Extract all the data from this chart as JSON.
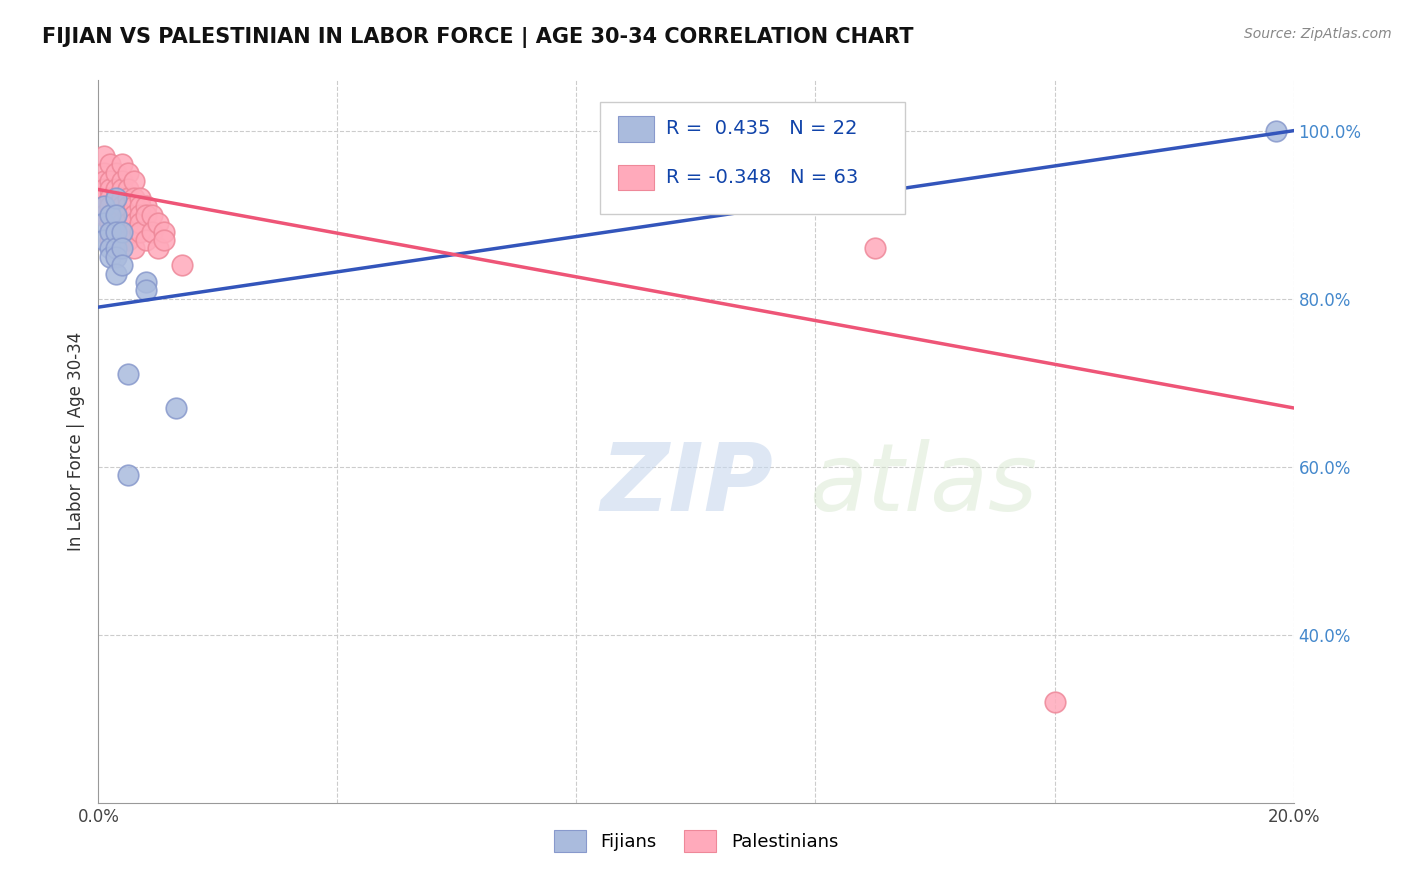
{
  "title": "FIJIAN VS PALESTINIAN IN LABOR FORCE | AGE 30-34 CORRELATION CHART",
  "source_text": "Source: ZipAtlas.com",
  "ylabel": "In Labor Force | Age 30-34",
  "xlim": [
    0.0,
    0.2
  ],
  "ylim": [
    0.2,
    1.06
  ],
  "xticks": [
    0.0,
    0.04,
    0.08,
    0.12,
    0.16,
    0.2
  ],
  "xticklabels": [
    "0.0%",
    "",
    "",
    "",
    "",
    "20.0%"
  ],
  "yticks": [
    0.4,
    0.6,
    0.8,
    1.0
  ],
  "yticklabels": [
    "40.0%",
    "60.0%",
    "80.0%",
    "100.0%"
  ],
  "grid_color": "#cccccc",
  "background_color": "#ffffff",
  "blue_color": "#aabbdd",
  "pink_color": "#ffaabb",
  "blue_edge_color": "#8899cc",
  "pink_edge_color": "#ee8899",
  "blue_line_color": "#3355bb",
  "pink_line_color": "#ee5577",
  "tick_color": "#4488cc",
  "R_blue": 0.435,
  "N_blue": 22,
  "R_pink": -0.348,
  "N_pink": 63,
  "legend_labels": [
    "Fijians",
    "Palestinians"
  ],
  "blue_scatter_x": [
    0.001,
    0.001,
    0.001,
    0.002,
    0.002,
    0.002,
    0.002,
    0.003,
    0.003,
    0.003,
    0.003,
    0.003,
    0.003,
    0.004,
    0.004,
    0.004,
    0.005,
    0.005,
    0.008,
    0.008,
    0.013,
    0.197
  ],
  "blue_scatter_y": [
    0.91,
    0.89,
    0.87,
    0.9,
    0.88,
    0.86,
    0.85,
    0.92,
    0.9,
    0.88,
    0.86,
    0.85,
    0.83,
    0.88,
    0.86,
    0.84,
    0.71,
    0.59,
    0.82,
    0.81,
    0.67,
    1.0
  ],
  "pink_scatter_x": [
    0.001,
    0.001,
    0.001,
    0.001,
    0.001,
    0.001,
    0.001,
    0.002,
    0.002,
    0.002,
    0.002,
    0.002,
    0.002,
    0.002,
    0.002,
    0.002,
    0.003,
    0.003,
    0.003,
    0.003,
    0.003,
    0.003,
    0.003,
    0.003,
    0.004,
    0.004,
    0.004,
    0.004,
    0.004,
    0.004,
    0.004,
    0.004,
    0.005,
    0.005,
    0.005,
    0.005,
    0.005,
    0.005,
    0.005,
    0.006,
    0.006,
    0.006,
    0.006,
    0.006,
    0.006,
    0.006,
    0.007,
    0.007,
    0.007,
    0.007,
    0.007,
    0.008,
    0.008,
    0.008,
    0.009,
    0.009,
    0.01,
    0.01,
    0.011,
    0.011,
    0.014,
    0.13,
    0.16
  ],
  "pink_scatter_y": [
    0.97,
    0.95,
    0.94,
    0.93,
    0.92,
    0.91,
    0.9,
    0.96,
    0.94,
    0.93,
    0.92,
    0.91,
    0.9,
    0.89,
    0.88,
    0.87,
    0.95,
    0.93,
    0.92,
    0.91,
    0.9,
    0.89,
    0.87,
    0.86,
    0.96,
    0.94,
    0.93,
    0.92,
    0.91,
    0.89,
    0.88,
    0.87,
    0.95,
    0.93,
    0.92,
    0.91,
    0.9,
    0.89,
    0.87,
    0.94,
    0.92,
    0.91,
    0.9,
    0.89,
    0.88,
    0.86,
    0.92,
    0.91,
    0.9,
    0.89,
    0.88,
    0.91,
    0.9,
    0.87,
    0.9,
    0.88,
    0.89,
    0.86,
    0.88,
    0.87,
    0.84,
    0.86,
    0.32
  ],
  "blue_trend_x": [
    0.0,
    0.2
  ],
  "blue_trend_y": [
    0.79,
    1.0
  ],
  "pink_trend_x": [
    0.0,
    0.2
  ],
  "pink_trend_y": [
    0.93,
    0.67
  ]
}
